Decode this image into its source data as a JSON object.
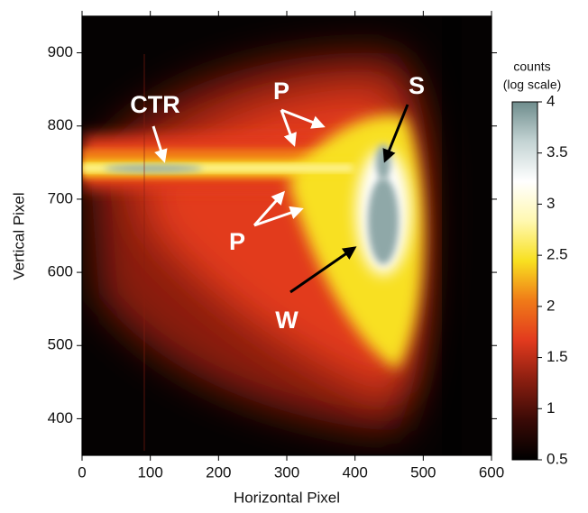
{
  "chart_data": {
    "type": "heatmap",
    "xlabel": "Horizontal Pixel",
    "ylabel": "Vertical Pixel",
    "xlim": [
      0,
      600
    ],
    "xticks": [
      0,
      100,
      200,
      300,
      400,
      500,
      600
    ],
    "ylim": [
      350,
      950
    ],
    "yticks": [
      400,
      500,
      600,
      700,
      800,
      900
    ],
    "annotations": [
      "CTR",
      "P",
      "P",
      "S",
      "W"
    ],
    "colorbar": {
      "label": [
        "counts",
        "(log scale)"
      ],
      "lim": [
        0.5,
        4
      ],
      "ticks": [
        0.5,
        1,
        1.5,
        2,
        2.5,
        3,
        3.5,
        4
      ],
      "colormap": [
        "#000000",
        "#3a0a06",
        "#8a1e10",
        "#e23a1e",
        "#f07a18",
        "#f8e020",
        "#fff8b0",
        "#ffffff",
        "#c4d4d4",
        "#6e8c8c"
      ]
    }
  }
}
